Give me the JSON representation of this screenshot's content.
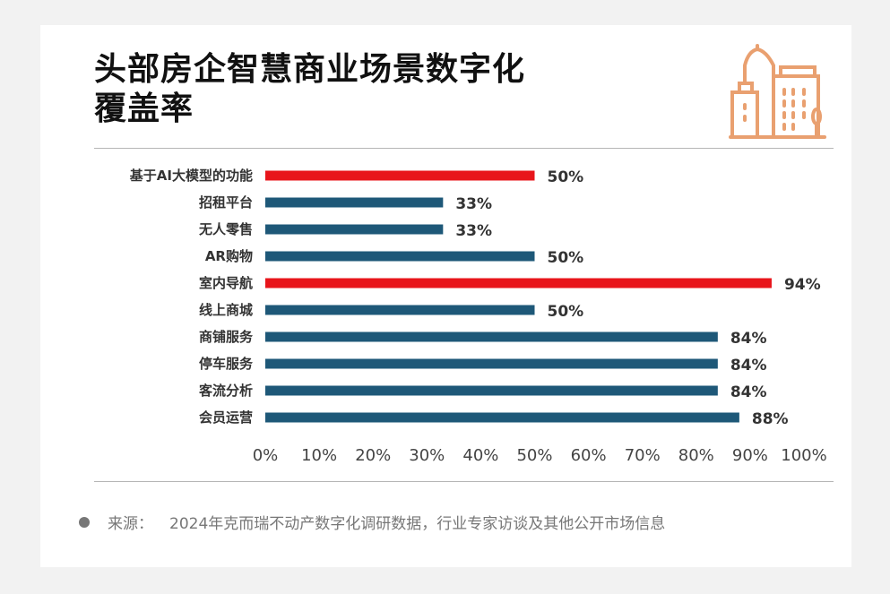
{
  "title_line1": "头部房企智慧商业场景数字化",
  "title_line2": "覆盖率",
  "icon": "city-buildings-icon",
  "source": {
    "label": "来源：",
    "text": "2024年克而瑞不动产数字化调研数据，行业专家访谈及其他公开市场信息"
  },
  "chart_data": {
    "type": "bar",
    "orientation": "horizontal",
    "categories": [
      "基于AI大模型的功能",
      "招租平台",
      "无人零售",
      "AR购物",
      "室内导航",
      "线上商城",
      "商铺服务",
      "停车服务",
      "客流分析",
      "会员运营"
    ],
    "values": [
      50,
      33,
      33,
      50,
      94,
      50,
      84,
      84,
      84,
      88
    ],
    "data_labels": [
      "50%",
      "33%",
      "33%",
      "50%",
      "94%",
      "50%",
      "84%",
      "84%",
      "84%",
      "88%"
    ],
    "highlight": [
      true,
      false,
      false,
      false,
      true,
      false,
      false,
      false,
      false,
      false
    ],
    "colors": {
      "highlight": "#e8151b",
      "default": "#1e5878",
      "icon": "#e9a070"
    },
    "xlim": [
      0,
      100
    ],
    "xticks": [
      "0%",
      "10%",
      "20%",
      "30%",
      "40%",
      "50%",
      "60%",
      "70%",
      "80%",
      "90%",
      "100%"
    ],
    "grid": false
  }
}
